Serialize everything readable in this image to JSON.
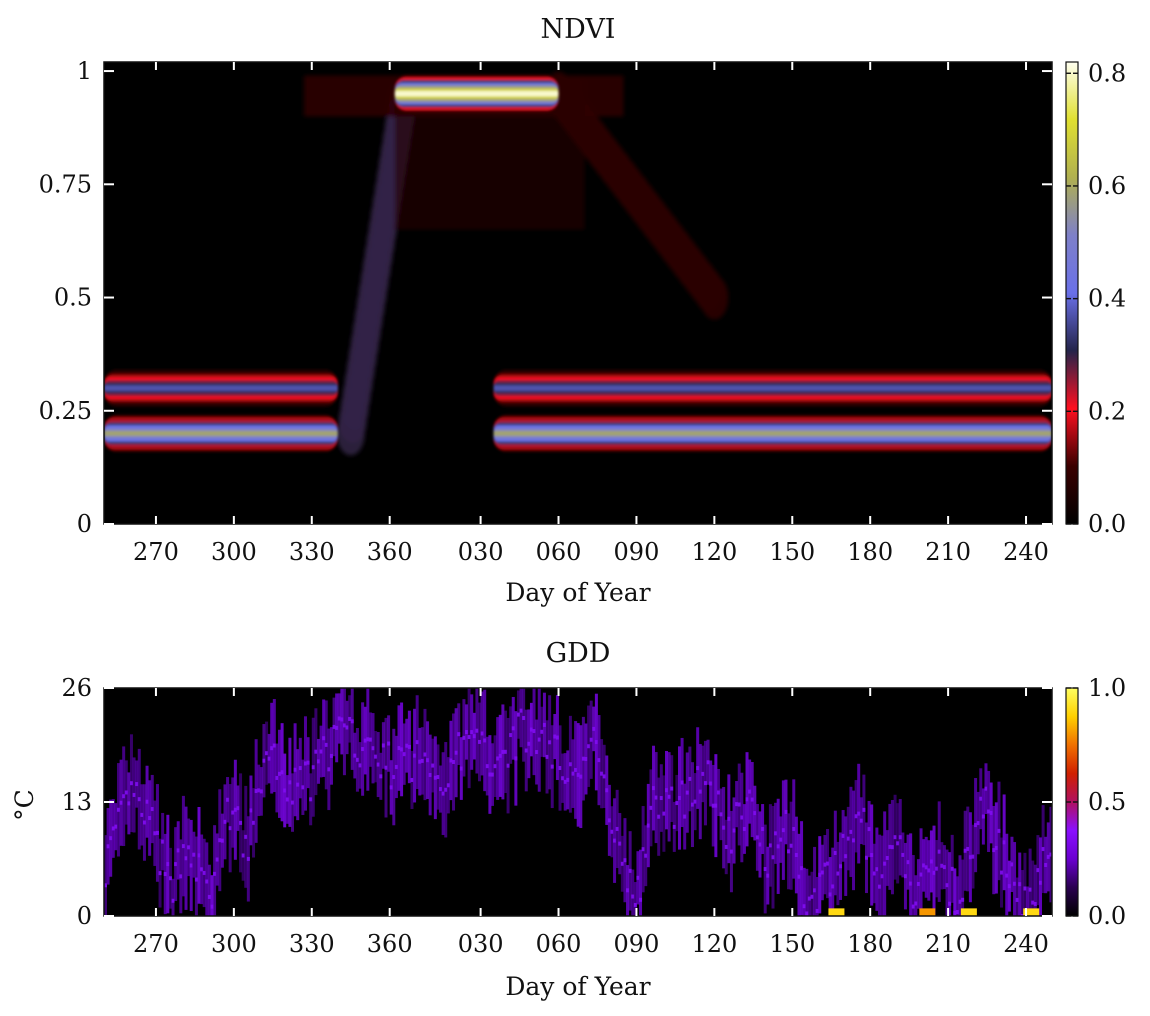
{
  "chart_data": [
    {
      "type": "heatmap",
      "title": "NDVI",
      "xlabel": "Day of Year",
      "ylabel": "",
      "x_tick_labels": [
        "270",
        "300",
        "330",
        "360",
        "030",
        "060",
        "090",
        "120",
        "150",
        "180",
        "210",
        "240"
      ],
      "x_tick_positions_days_since_start": [
        20,
        50,
        80,
        110,
        145,
        175,
        205,
        235,
        265,
        295,
        325,
        355
      ],
      "x_range_days": [
        0,
        365
      ],
      "y_tick_labels": [
        "0",
        "0.25",
        "0.5",
        "0.75",
        "1"
      ],
      "y_ticks": [
        0,
        0.25,
        0.5,
        0.75,
        1
      ],
      "ylim": [
        0,
        1.02
      ],
      "colorbar": {
        "tick_labels": [
          "0.0",
          "0.2",
          "0.4",
          "0.6",
          "0.8"
        ],
        "ticks": [
          0.0,
          0.2,
          0.4,
          0.6,
          0.8
        ],
        "range": [
          0,
          0.82
        ],
        "colormap": [
          "#000000",
          "#3a0000",
          "#ff1020",
          "#24244a",
          "#6a70e8",
          "#7e80c8",
          "#b0b050",
          "#e0e030",
          "#fffff0"
        ]
      },
      "features": [
        {
          "name": "early-season lower band",
          "x_start": 0,
          "x_end": 90,
          "y": 0.2,
          "peak_density": 0.6
        },
        {
          "name": "early-season upper band",
          "x_start": 0,
          "x_end": 90,
          "y": 0.3,
          "peak_density": 0.38
        },
        {
          "name": "rapid green-up",
          "x_start": 95,
          "x_end": 115,
          "y_start": 0.2,
          "y_end": 0.93,
          "peak_density": 0.3
        },
        {
          "name": "peak canopy",
          "x_start": 112,
          "x_end": 175,
          "y": 0.95,
          "peak_density": 0.82
        },
        {
          "name": "senescence tail",
          "x_start": 175,
          "x_end": 235,
          "y_start": 0.95,
          "y_end": 0.5,
          "peak_density": 0.08
        },
        {
          "name": "late-season lower band",
          "x_start": 150,
          "x_end": 365,
          "y": 0.2,
          "peak_density": 0.6
        },
        {
          "name": "late-season upper band",
          "x_start": 150,
          "x_end": 365,
          "y": 0.3,
          "peak_density": 0.38
        }
      ]
    },
    {
      "type": "heatmap",
      "title": "GDD",
      "xlabel": "Day of Year",
      "ylabel": "°C",
      "x_tick_labels": [
        "270",
        "300",
        "330",
        "360",
        "030",
        "060",
        "090",
        "120",
        "150",
        "180",
        "210",
        "240"
      ],
      "x_tick_positions_days_since_start": [
        20,
        50,
        80,
        110,
        145,
        175,
        205,
        235,
        265,
        295,
        325,
        355
      ],
      "x_range_days": [
        0,
        365
      ],
      "y_tick_labels": [
        "0",
        "13",
        "26"
      ],
      "y_ticks": [
        0,
        13,
        26
      ],
      "ylim": [
        0,
        26
      ],
      "colorbar": {
        "tick_labels": [
          "0.0",
          "0.5",
          "1.0"
        ],
        "ticks": [
          0.0,
          0.5,
          1.0
        ],
        "range": [
          0,
          1
        ],
        "colormap": [
          "#000000",
          "#2a0050",
          "#6a00d0",
          "#8a10ff",
          "#b01060",
          "#d02000",
          "#f07000",
          "#ffd000",
          "#ffff60"
        ]
      },
      "temperature_trace_degC": [
        {
          "x": 0,
          "y": 6
        },
        {
          "x": 10,
          "y": 14
        },
        {
          "x": 18,
          "y": 10
        },
        {
          "x": 25,
          "y": 3
        },
        {
          "x": 32,
          "y": 9
        },
        {
          "x": 40,
          "y": 1
        },
        {
          "x": 47,
          "y": 12
        },
        {
          "x": 55,
          "y": 8
        },
        {
          "x": 62,
          "y": 19
        },
        {
          "x": 70,
          "y": 14
        },
        {
          "x": 80,
          "y": 16
        },
        {
          "x": 90,
          "y": 21
        },
        {
          "x": 100,
          "y": 19
        },
        {
          "x": 110,
          "y": 17
        },
        {
          "x": 120,
          "y": 18
        },
        {
          "x": 130,
          "y": 16
        },
        {
          "x": 140,
          "y": 20
        },
        {
          "x": 150,
          "y": 18
        },
        {
          "x": 160,
          "y": 21
        },
        {
          "x": 170,
          "y": 20
        },
        {
          "x": 180,
          "y": 16
        },
        {
          "x": 190,
          "y": 20
        },
        {
          "x": 197,
          "y": 8
        },
        {
          "x": 205,
          "y": 2
        },
        {
          "x": 212,
          "y": 14
        },
        {
          "x": 220,
          "y": 12
        },
        {
          "x": 230,
          "y": 17
        },
        {
          "x": 240,
          "y": 9
        },
        {
          "x": 248,
          "y": 13
        },
        {
          "x": 255,
          "y": 7
        },
        {
          "x": 262,
          "y": 11
        },
        {
          "x": 270,
          "y": 2
        },
        {
          "x": 280,
          "y": 4
        },
        {
          "x": 290,
          "y": 12
        },
        {
          "x": 298,
          "y": 3
        },
        {
          "x": 305,
          "y": 8
        },
        {
          "x": 312,
          "y": 2
        },
        {
          "x": 320,
          "y": 7
        },
        {
          "x": 328,
          "y": 2
        },
        {
          "x": 338,
          "y": 13
        },
        {
          "x": 346,
          "y": 6
        },
        {
          "x": 355,
          "y": 1
        },
        {
          "x": 365,
          "y": 10
        }
      ],
      "hot_spots": [
        {
          "x": 282,
          "y": 0.3,
          "value": 0.9
        },
        {
          "x": 317,
          "y": 0.3,
          "value": 0.8
        },
        {
          "x": 333,
          "y": 0.3,
          "value": 0.9
        },
        {
          "x": 357,
          "y": 0.3,
          "value": 0.9
        }
      ]
    }
  ]
}
